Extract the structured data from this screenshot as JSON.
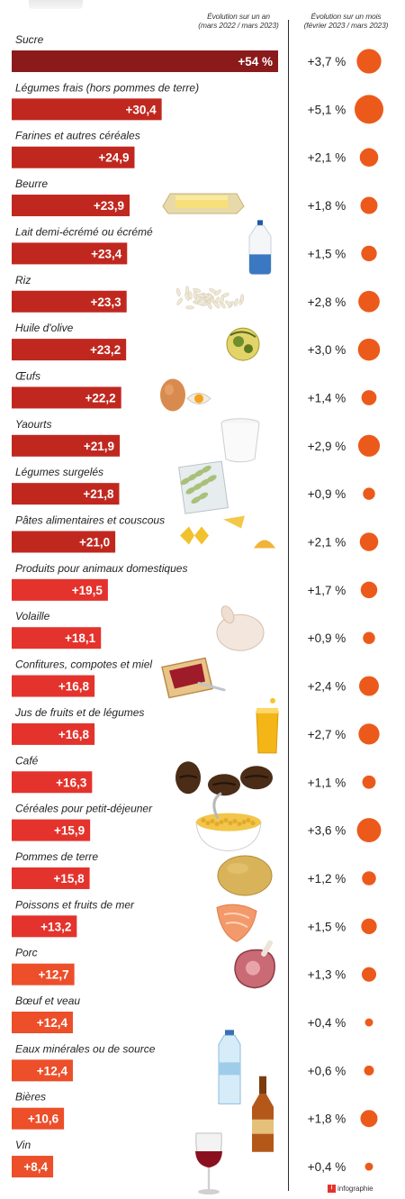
{
  "header": {
    "year_label_line1": "Évolution sur un an",
    "year_label_line2": "(mars 2022 / mars 2023)",
    "month_label_line1": "Évolution sur un mois",
    "month_label_line2": "(février 2023 / mars 2023)"
  },
  "footer": {
    "logo": "i",
    "text": "infographie"
  },
  "colors": {
    "sugar_bar": "#8b1a1a",
    "dark_bar": "#c0281f",
    "bar": "#e4332c",
    "light_bar": "#ec4f2a",
    "dot": "#ec5a1b"
  },
  "chart_data": {
    "type": "bar",
    "year_series_label": "Évolution sur un an (mars 2022 / mars 2023)",
    "month_series_label": "Évolution sur un mois (février 2023 / mars 2023)",
    "categories": [
      "Sucre",
      "Légumes frais (hors pommes de terre)",
      "Farines et autres céréales",
      "Beurre",
      "Lait demi-écrémé ou écrémé",
      "Riz",
      "Huile d'olive",
      "Œufs",
      "Yaourts",
      "Légumes surgelés",
      "Pâtes alimentaires et couscous",
      "Produits pour animaux domestiques",
      "Volaille",
      "Confitures, compotes et miel",
      "Jus de fruits et de légumes",
      "Café",
      "Céréales pour petit-déjeuner",
      "Pommes de terre",
      "Poissons et fruits de mer",
      "Porc",
      "Bœuf et veau",
      "Eaux minérales ou de source",
      "Bières",
      "Vin"
    ],
    "year_values": [
      54,
      30.4,
      24.9,
      23.9,
      23.4,
      23.3,
      23.2,
      22.2,
      21.9,
      21.8,
      21.0,
      19.5,
      18.1,
      16.8,
      16.8,
      16.3,
      15.9,
      15.8,
      13.2,
      12.7,
      12.4,
      12.4,
      10.6,
      8.4
    ],
    "year_labels": [
      "+54 %",
      "+30,4",
      "+24,9",
      "+23,9",
      "+23,4",
      "+23,3",
      "+23,2",
      "+22,2",
      "+21,9",
      "+21,8",
      "+21,0",
      "+19,5",
      "+18,1",
      "+16,8",
      "+16,8",
      "+16,3",
      "+15,9",
      "+15,8",
      "+13,2",
      "+12,7",
      "+12,4",
      "+12,4",
      "+10,6",
      "+8,4"
    ],
    "month_values": [
      3.7,
      5.1,
      2.1,
      1.8,
      1.5,
      2.8,
      3.0,
      1.4,
      2.9,
      0.9,
      2.1,
      1.7,
      0.9,
      2.4,
      2.7,
      1.1,
      3.6,
      1.2,
      1.5,
      1.3,
      0.4,
      0.6,
      1.8,
      0.4
    ],
    "month_labels": [
      "+3,7 %",
      "+5,1 %",
      "+2,1 %",
      "+1,8 %",
      "+1,5 %",
      "+2,8 %",
      "+3,0 %",
      "+1,4 %",
      "+2,9 %",
      "+0,9 %",
      "+2,1 %",
      "+1,7 %",
      "+0,9 %",
      "+2,4 %",
      "+2,7 %",
      "+1,1 %",
      "+3,6 %",
      "+1,2 %",
      "+1,5 %",
      "+1,3 %",
      "+0,4 %",
      "+0,6 %",
      "+1,8 %",
      "+0,4 %"
    ],
    "item_icons": [
      "sugar-cubes",
      "",
      "",
      "butter",
      "milk-bottle",
      "rice",
      "olive-oil",
      "egg",
      "yogurt",
      "frozen-vegetables",
      "pasta",
      "",
      "chicken",
      "jam-toast",
      "juice",
      "coffee-beans",
      "cereal-bowl",
      "potato",
      "salmon",
      "ham",
      "",
      "water-bottle",
      "beer-bottle",
      "wine-glass"
    ],
    "grid": false,
    "legend": "none"
  }
}
